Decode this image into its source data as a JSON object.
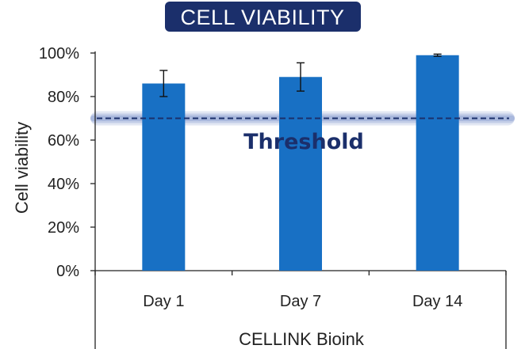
{
  "chart_data": {
    "type": "bar",
    "title": "CELL VIABILITY",
    "xlabel": "CELLINK Bioink",
    "ylabel": "Cell viability",
    "categories": [
      "Day 1",
      "Day 7",
      "Day 14"
    ],
    "values": [
      86,
      89,
      99
    ],
    "errors": [
      6,
      6.5,
      0.5
    ],
    "ylim": [
      0,
      100
    ],
    "yticks": [
      0,
      20,
      40,
      60,
      80,
      100
    ],
    "ytick_labels": [
      "0%",
      "20%",
      "40%",
      "60%",
      "80%",
      "100%"
    ],
    "threshold": {
      "value": 70,
      "label": "Threshold"
    },
    "grid": false,
    "colors": {
      "bar": "#1870c4",
      "title_bg": "#1b2f6b",
      "threshold_line": "#1b2f6b",
      "threshold_glow": "#8a9fd0",
      "axis": "#222222"
    }
  }
}
